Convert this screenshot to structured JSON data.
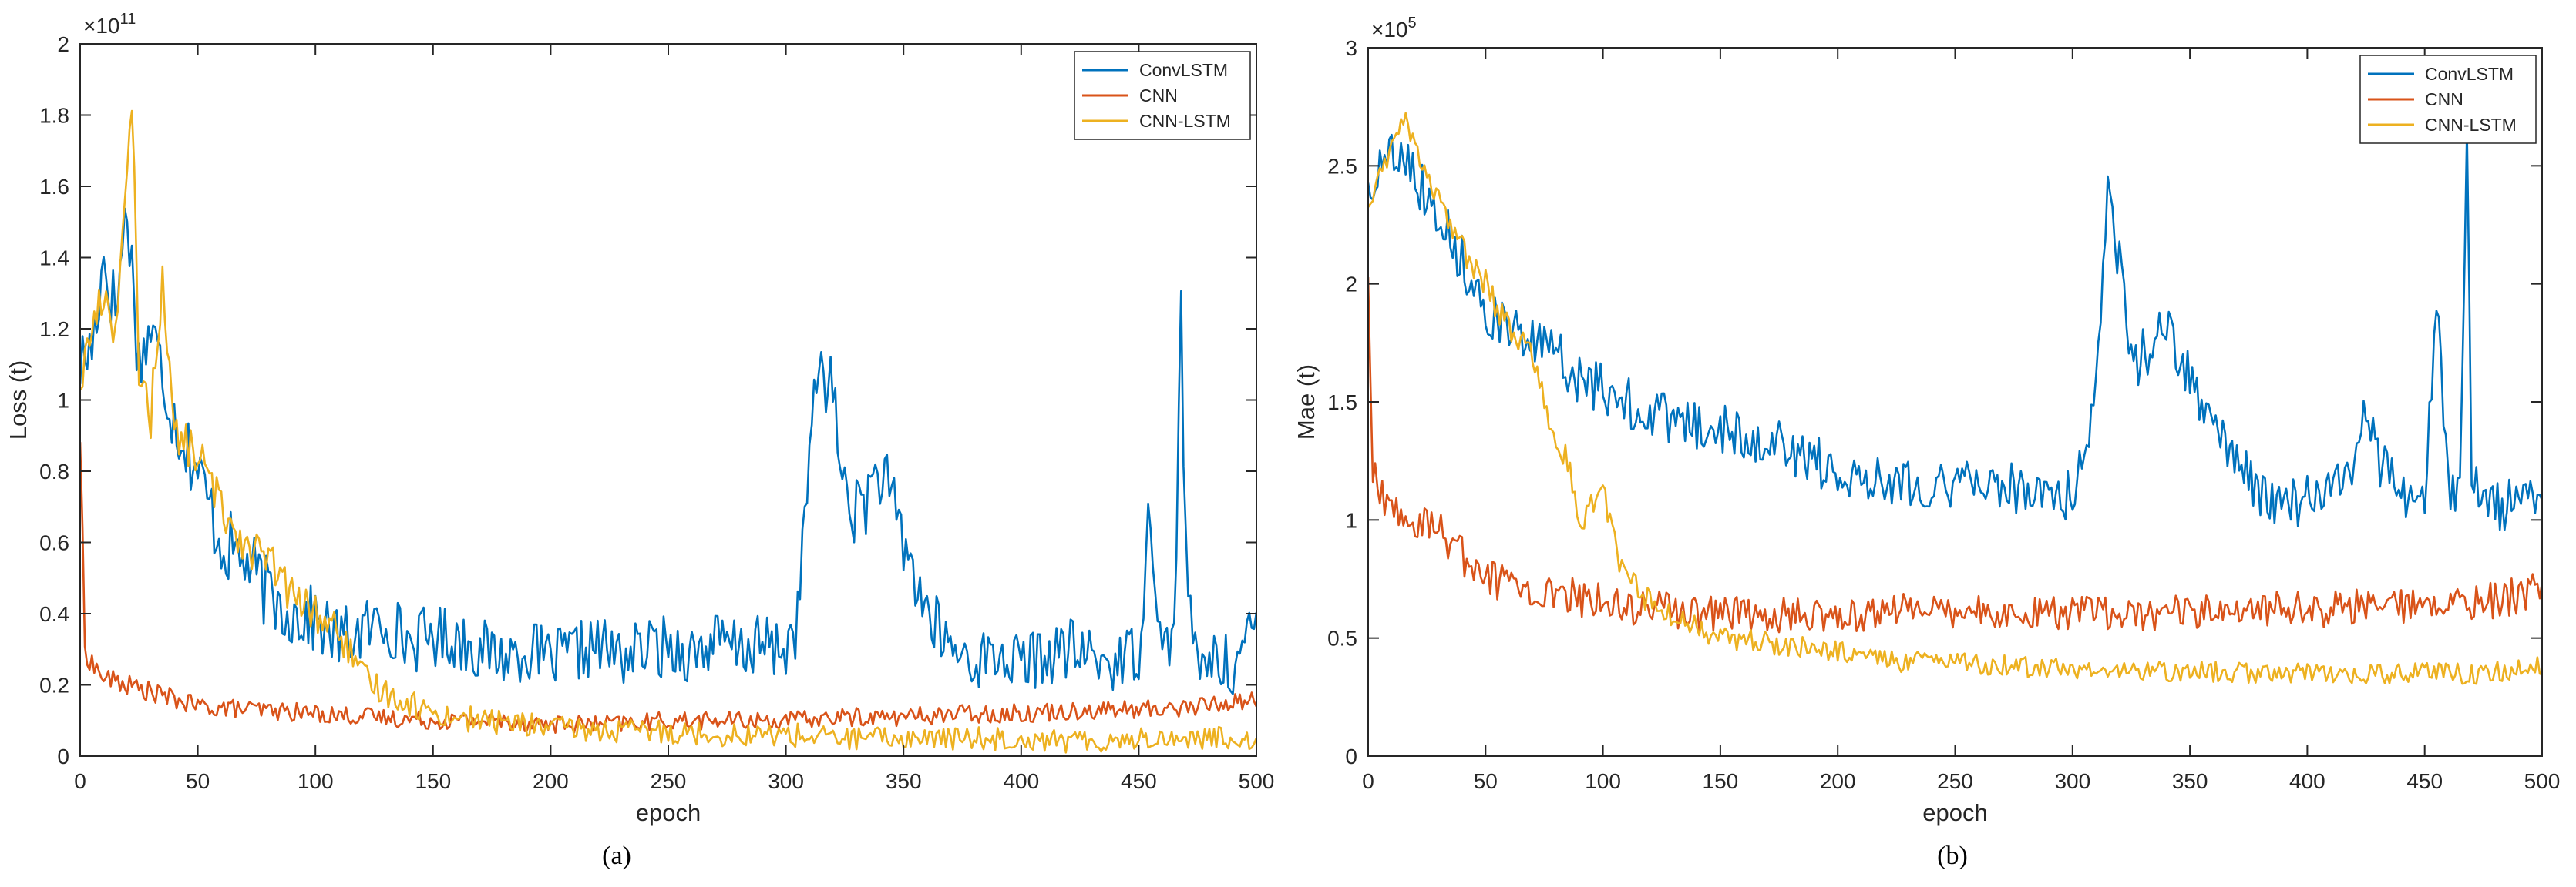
{
  "colors": {
    "ConvLSTM": "#0072BD",
    "CNN": "#D95319",
    "CNN-LSTM": "#EDB120",
    "axis": "#262626",
    "background": "#ffffff"
  },
  "chart_data": [
    {
      "type": "line",
      "panel_label": "(a)",
      "xlabel": "epoch",
      "ylabel": "Loss (t)",
      "exponent_base": "×10",
      "exponent_power": "11",
      "xlim": [
        0,
        500
      ],
      "ylim": [
        0,
        2
      ],
      "xticks": [
        0,
        50,
        100,
        150,
        200,
        250,
        300,
        350,
        400,
        450,
        500
      ],
      "yticks": [
        0,
        0.2,
        0.4,
        0.6,
        0.8,
        1,
        1.2,
        1.4,
        1.6,
        1.8,
        2
      ],
      "ytick_labels": [
        "0",
        "0.2",
        "0.4",
        "0.6",
        "0.8",
        "1",
        "1.2",
        "1.4",
        "1.6",
        "1.8",
        "2"
      ],
      "legend_position": "top-right",
      "grid": false,
      "series": [
        {
          "name": "ConvLSTM",
          "x": [
            0,
            5,
            10,
            15,
            20,
            25,
            30,
            40,
            50,
            60,
            70,
            80,
            90,
            100,
            110,
            120,
            130,
            140,
            150,
            160,
            170,
            180,
            190,
            200,
            210,
            220,
            230,
            240,
            250,
            260,
            270,
            280,
            290,
            300,
            305,
            310,
            315,
            320,
            325,
            330,
            340,
            350,
            360,
            370,
            380,
            390,
            400,
            410,
            420,
            430,
            440,
            450,
            455,
            460,
            465,
            468,
            470,
            475,
            480,
            490,
            500
          ],
          "y": [
            1.1,
            1.15,
            1.4,
            1.25,
            1.55,
            1.1,
            1.2,
            0.95,
            0.8,
            0.6,
            0.55,
            0.45,
            0.4,
            0.38,
            0.33,
            0.35,
            0.38,
            0.32,
            0.34,
            0.33,
            0.3,
            0.28,
            0.3,
            0.27,
            0.29,
            0.31,
            0.28,
            0.3,
            0.31,
            0.29,
            0.32,
            0.3,
            0.31,
            0.3,
            0.38,
            0.85,
            1.12,
            1.0,
            0.75,
            0.68,
            0.8,
            0.6,
            0.4,
            0.3,
            0.27,
            0.28,
            0.26,
            0.28,
            0.3,
            0.28,
            0.26,
            0.3,
            0.72,
            0.28,
            0.35,
            1.25,
            0.55,
            0.22,
            0.28,
            0.25,
            0.36
          ]
        },
        {
          "name": "CNN",
          "x": [
            0,
            2,
            5,
            10,
            20,
            30,
            40,
            50,
            75,
            100,
            125,
            150,
            175,
            200,
            225,
            250,
            275,
            300,
            325,
            350,
            375,
            400,
            425,
            450,
            475,
            500
          ],
          "y": [
            0.9,
            0.3,
            0.26,
            0.22,
            0.2,
            0.18,
            0.16,
            0.14,
            0.13,
            0.12,
            0.11,
            0.1,
            0.1,
            0.09,
            0.09,
            0.1,
            0.1,
            0.1,
            0.11,
            0.11,
            0.12,
            0.12,
            0.13,
            0.13,
            0.14,
            0.16
          ]
        },
        {
          "name": "CNN-LSTM",
          "x": [
            0,
            5,
            10,
            15,
            20,
            22,
            25,
            30,
            35,
            40,
            50,
            60,
            70,
            80,
            90,
            100,
            110,
            120,
            130,
            140,
            150,
            170,
            190,
            200,
            225,
            250,
            275,
            300,
            325,
            350,
            375,
            400,
            425,
            450,
            475,
            500
          ],
          "y": [
            1.05,
            1.2,
            1.3,
            1.2,
            1.6,
            1.85,
            1.1,
            0.95,
            1.35,
            0.9,
            0.85,
            0.7,
            0.6,
            0.55,
            0.45,
            0.4,
            0.35,
            0.22,
            0.18,
            0.15,
            0.12,
            0.1,
            0.09,
            0.08,
            0.07,
            0.07,
            0.06,
            0.06,
            0.05,
            0.05,
            0.05,
            0.05,
            0.04,
            0.05,
            0.05,
            0.05
          ]
        }
      ]
    },
    {
      "type": "line",
      "panel_label": "(b)",
      "xlabel": "epoch",
      "ylabel": "Mae (t)",
      "exponent_base": "×10",
      "exponent_power": "5",
      "xlim": [
        0,
        500
      ],
      "ylim": [
        0,
        3
      ],
      "xticks": [
        0,
        50,
        100,
        150,
        200,
        250,
        300,
        350,
        400,
        450,
        500
      ],
      "yticks": [
        0,
        0.5,
        1,
        1.5,
        2,
        2.5,
        3
      ],
      "ytick_labels": [
        "0",
        "0.5",
        "1",
        "1.5",
        "2",
        "2.5",
        "3"
      ],
      "legend_position": "top-right",
      "grid": false,
      "series": [
        {
          "name": "ConvLSTM",
          "x": [
            0,
            5,
            10,
            15,
            20,
            30,
            40,
            50,
            60,
            70,
            80,
            90,
            100,
            110,
            120,
            130,
            140,
            150,
            160,
            170,
            180,
            190,
            200,
            220,
            240,
            260,
            280,
            300,
            305,
            310,
            315,
            320,
            325,
            330,
            340,
            350,
            360,
            370,
            380,
            390,
            400,
            410,
            420,
            425,
            430,
            440,
            450,
            455,
            460,
            465,
            468,
            470,
            475,
            480,
            490,
            500
          ],
          "y": [
            2.4,
            2.5,
            2.55,
            2.6,
            2.45,
            2.3,
            2.1,
            1.9,
            1.8,
            1.75,
            1.7,
            1.6,
            1.55,
            1.5,
            1.45,
            1.42,
            1.4,
            1.38,
            1.36,
            1.34,
            1.3,
            1.25,
            1.2,
            1.18,
            1.15,
            1.15,
            1.13,
            1.1,
            1.25,
            1.6,
            2.35,
            2.1,
            1.65,
            1.7,
            1.8,
            1.6,
            1.4,
            1.25,
            1.1,
            1.05,
            1.1,
            1.15,
            1.25,
            1.45,
            1.25,
            1.1,
            1.05,
            1.95,
            1.15,
            1.1,
            2.65,
            1.2,
            1.05,
            1.05,
            1.08,
            1.12
          ]
        },
        {
          "name": "CNN",
          "x": [
            0,
            2,
            5,
            10,
            20,
            30,
            40,
            50,
            75,
            100,
            125,
            150,
            175,
            200,
            225,
            250,
            275,
            300,
            325,
            350,
            375,
            400,
            425,
            450,
            475,
            500
          ],
          "y": [
            2.0,
            1.2,
            1.1,
            1.05,
            1.0,
            0.95,
            0.85,
            0.75,
            0.7,
            0.65,
            0.62,
            0.6,
            0.6,
            0.6,
            0.61,
            0.62,
            0.6,
            0.6,
            0.6,
            0.61,
            0.62,
            0.62,
            0.63,
            0.64,
            0.65,
            0.7
          ]
        },
        {
          "name": "CNN-LSTM",
          "x": [
            0,
            5,
            10,
            15,
            20,
            30,
            40,
            50,
            60,
            70,
            75,
            80,
            85,
            90,
            95,
            100,
            105,
            110,
            120,
            130,
            140,
            150,
            170,
            190,
            200,
            225,
            250,
            275,
            300,
            325,
            350,
            375,
            400,
            425,
            450,
            475,
            500
          ],
          "y": [
            2.3,
            2.45,
            2.6,
            2.7,
            2.55,
            2.35,
            2.15,
            2.0,
            1.8,
            1.7,
            1.5,
            1.3,
            1.25,
            0.95,
            1.05,
            1.15,
            0.9,
            0.75,
            0.65,
            0.6,
            0.55,
            0.5,
            0.48,
            0.45,
            0.44,
            0.4,
            0.4,
            0.38,
            0.37,
            0.36,
            0.36,
            0.35,
            0.35,
            0.35,
            0.35,
            0.35,
            0.38
          ]
        }
      ]
    }
  ]
}
